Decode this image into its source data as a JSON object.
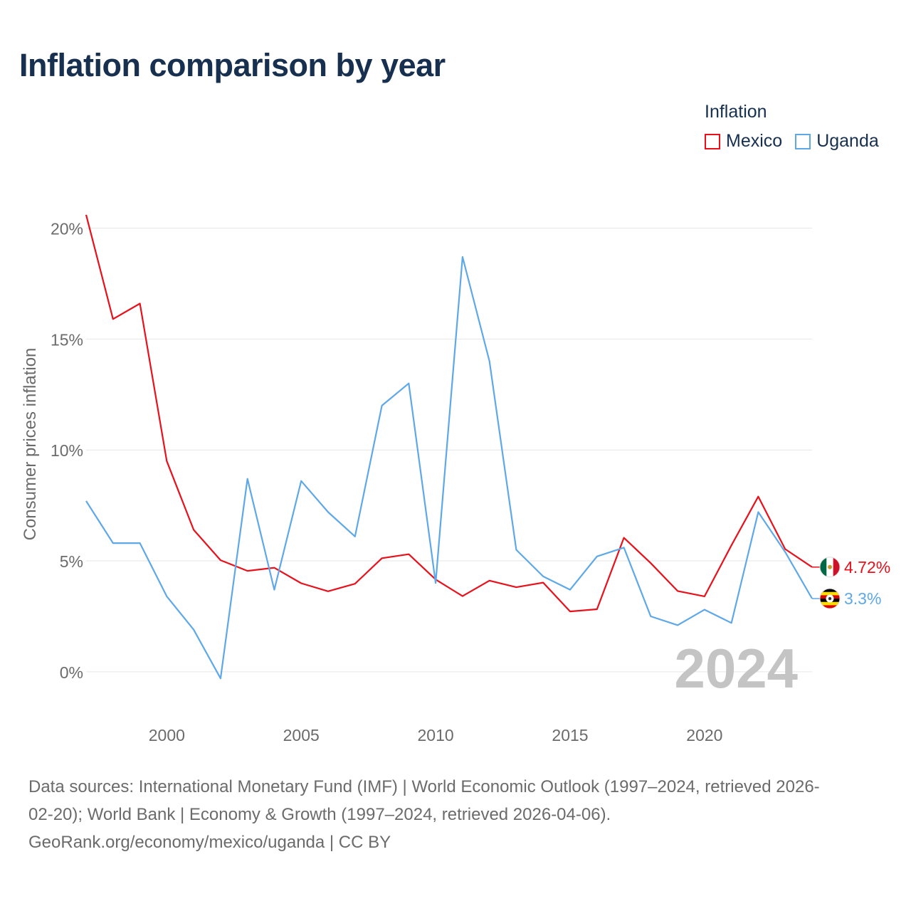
{
  "title": "Inflation comparison by year",
  "legend": {
    "title": "Inflation",
    "items": [
      {
        "name": "Mexico",
        "color": "#e8111b"
      },
      {
        "name": "Uganda",
        "color": "#5fa8e8"
      }
    ]
  },
  "chart_data": {
    "type": "line",
    "title": "Inflation comparison by year",
    "xlabel": "",
    "ylabel": "Consumer prices inflation",
    "xlim": [
      1997,
      2024
    ],
    "ylim": [
      -1.8,
      21.3
    ],
    "x_ticks": [
      2000,
      2005,
      2010,
      2015,
      2020
    ],
    "y_ticks": [
      0,
      5,
      10,
      15,
      20
    ],
    "y_tick_labels": [
      "0%",
      "5%",
      "10%",
      "15%",
      "20%"
    ],
    "grid": true,
    "legend_position": "top-right",
    "year_watermark": "2024",
    "x": [
      1997,
      1998,
      1999,
      2000,
      2001,
      2002,
      2003,
      2004,
      2005,
      2006,
      2007,
      2008,
      2009,
      2010,
      2011,
      2012,
      2013,
      2014,
      2015,
      2016,
      2017,
      2018,
      2019,
      2020,
      2021,
      2022,
      2023,
      2024
    ],
    "series": [
      {
        "name": "Mexico",
        "color": "#e8111b",
        "end_label": "4.72%",
        "flag": "mexico-flag",
        "values": [
          20.6,
          15.9,
          16.6,
          9.5,
          6.4,
          5.03,
          4.55,
          4.69,
          3.99,
          3.63,
          3.97,
          5.12,
          5.3,
          4.16,
          3.41,
          4.11,
          3.81,
          4.02,
          2.72,
          2.82,
          6.04,
          4.9,
          3.64,
          3.4,
          5.7,
          7.9,
          5.53,
          4.72
        ]
      },
      {
        "name": "Uganda",
        "color": "#5fa8e8",
        "end_label": "3.3%",
        "flag": "uganda-flag",
        "values": [
          7.7,
          5.8,
          5.8,
          3.4,
          1.9,
          -0.3,
          8.7,
          3.7,
          8.6,
          7.2,
          6.1,
          12.0,
          13.0,
          4.0,
          18.7,
          14.0,
          5.5,
          4.3,
          3.7,
          5.2,
          5.6,
          2.5,
          2.1,
          2.8,
          2.2,
          7.2,
          5.4,
          3.3
        ]
      }
    ]
  },
  "footer": {
    "line1": "Data sources: International Monetary Fund (IMF) | World Economic Outlook (1997–2024, retrieved 2026-",
    "line2": "02-20); World Bank | Economy & Growth (1997–2024, retrieved 2026-04-06).",
    "line3": "GeoRank.org/economy/mexico/uganda | CC BY"
  }
}
